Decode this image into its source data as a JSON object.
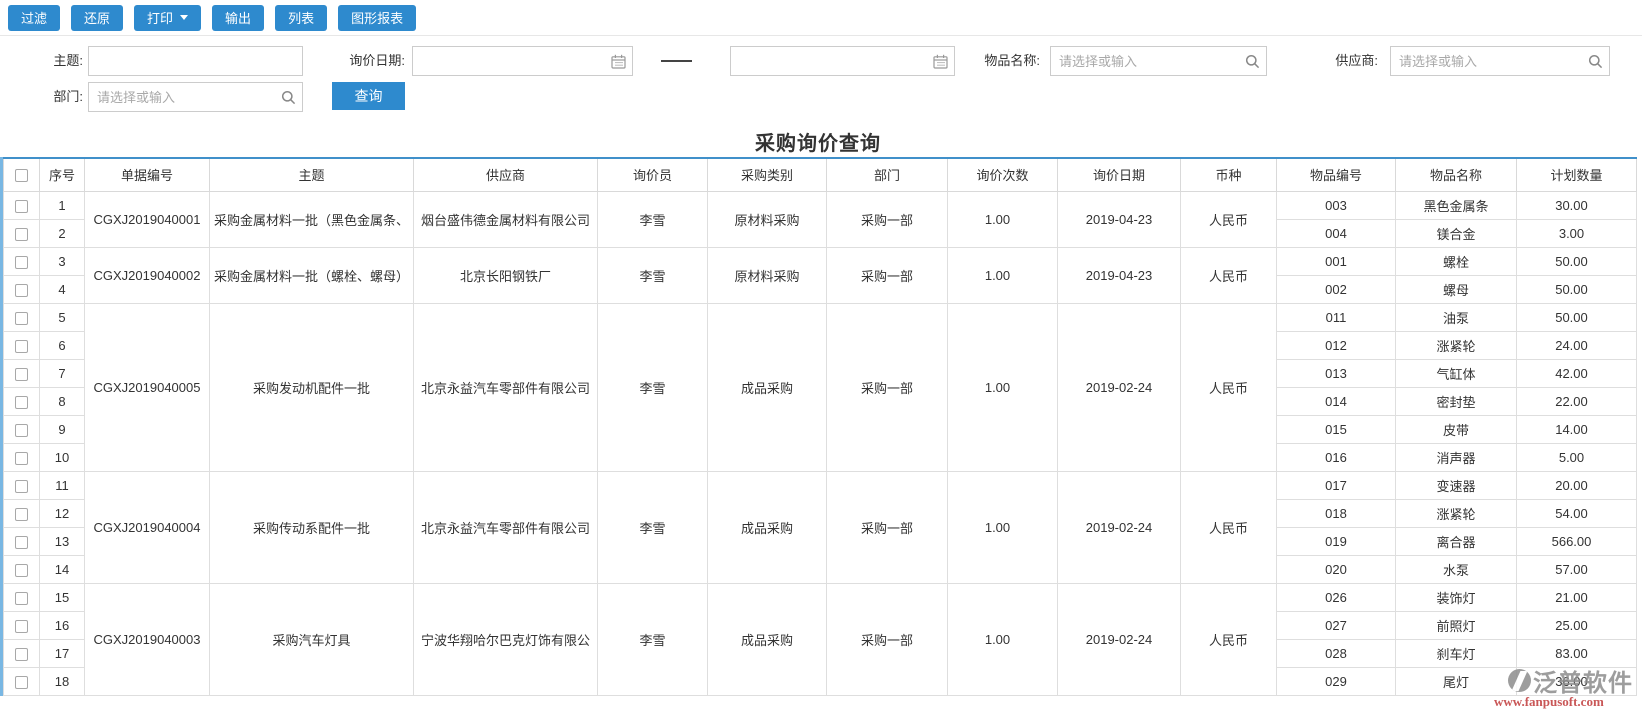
{
  "toolbar": {
    "buttons": [
      "过滤",
      "还原",
      "打印",
      "输出",
      "列表",
      "图形报表"
    ]
  },
  "filters": {
    "subject_label": "主题:",
    "subject_value": "",
    "date_label": "询价日期:",
    "date_from_value": "",
    "date_to_value": "",
    "item_label": "物品名称:",
    "item_placeholder": "请选择或输入",
    "supplier_label": "供应商:",
    "supplier_placeholder": "请选择或输入",
    "dept_label": "部门:",
    "dept_placeholder": "请选择或输入",
    "search_button": "查询"
  },
  "title": "采购询价查询",
  "table": {
    "headers": [
      "序号",
      "单据编号",
      "主题",
      "供应商",
      "询价员",
      "采购类别",
      "部门",
      "询价次数",
      "询价日期",
      "币种",
      "物品编号",
      "物品名称",
      "计划数量"
    ],
    "blocks": [
      {
        "doc_no": "CGXJ2019040001",
        "subject": "采购金属材料一批（黑色金属条、",
        "supplier": "烟台盛伟德金属材料有限公司",
        "inquirer": "李雪",
        "category": "原材料采购",
        "department": "采购一部",
        "inquiry_count": "1.00",
        "inquiry_date": "2019-04-23",
        "currency": "人民币",
        "items": [
          {
            "code": "003",
            "name": "黑色金属条",
            "qty": "30.00"
          },
          {
            "code": "004",
            "name": "镁合金",
            "qty": "3.00"
          }
        ]
      },
      {
        "doc_no": "CGXJ2019040002",
        "subject": "采购金属材料一批（螺栓、螺母）",
        "supplier": "北京长阳钢铁厂",
        "inquirer": "李雪",
        "category": "原材料采购",
        "department": "采购一部",
        "inquiry_count": "1.00",
        "inquiry_date": "2019-04-23",
        "currency": "人民币",
        "items": [
          {
            "code": "001",
            "name": "螺栓",
            "qty": "50.00"
          },
          {
            "code": "002",
            "name": "螺母",
            "qty": "50.00"
          }
        ]
      },
      {
        "doc_no": "CGXJ2019040005",
        "subject": "采购发动机配件一批",
        "supplier": "北京永益汽车零部件有限公司",
        "inquirer": "李雪",
        "category": "成品采购",
        "department": "采购一部",
        "inquiry_count": "1.00",
        "inquiry_date": "2019-02-24",
        "currency": "人民币",
        "items": [
          {
            "code": "011",
            "name": "油泵",
            "qty": "50.00"
          },
          {
            "code": "012",
            "name": "涨紧轮",
            "qty": "24.00"
          },
          {
            "code": "013",
            "name": "气缸体",
            "qty": "42.00"
          },
          {
            "code": "014",
            "name": "密封垫",
            "qty": "22.00"
          },
          {
            "code": "015",
            "name": "皮带",
            "qty": "14.00"
          },
          {
            "code": "016",
            "name": "消声器",
            "qty": "5.00"
          }
        ]
      },
      {
        "doc_no": "CGXJ2019040004",
        "subject": "采购传动系配件一批",
        "supplier": "北京永益汽车零部件有限公司",
        "inquirer": "李雪",
        "category": "成品采购",
        "department": "采购一部",
        "inquiry_count": "1.00",
        "inquiry_date": "2019-02-24",
        "currency": "人民币",
        "items": [
          {
            "code": "017",
            "name": "变速器",
            "qty": "20.00"
          },
          {
            "code": "018",
            "name": "涨紧轮",
            "qty": "54.00"
          },
          {
            "code": "019",
            "name": "离合器",
            "qty": "566.00"
          },
          {
            "code": "020",
            "name": "水泵",
            "qty": "57.00"
          }
        ]
      },
      {
        "doc_no": "CGXJ2019040003",
        "subject": "采购汽车灯具",
        "supplier": "宁波华翔哈尔巴克灯饰有限公",
        "inquirer": "李雪",
        "category": "成品采购",
        "department": "采购一部",
        "inquiry_count": "1.00",
        "inquiry_date": "2019-02-24",
        "currency": "人民币",
        "items": [
          {
            "code": "026",
            "name": "装饰灯",
            "qty": "21.00"
          },
          {
            "code": "027",
            "name": "前照灯",
            "qty": "25.00"
          },
          {
            "code": "028",
            "name": "刹车灯",
            "qty": "83.00"
          },
          {
            "code": "029",
            "name": "尾灯",
            "qty": "36.00"
          }
        ]
      }
    ]
  },
  "watermark": {
    "brand": "泛普软件",
    "url": "www.fanpusoft.com"
  },
  "colors": {
    "accent": "#2e8ace",
    "link": "#2a2ad2",
    "table_top_border": "#4090ca",
    "table_left_border": "#79b7e3",
    "watermark_red": "#c03a3a"
  }
}
